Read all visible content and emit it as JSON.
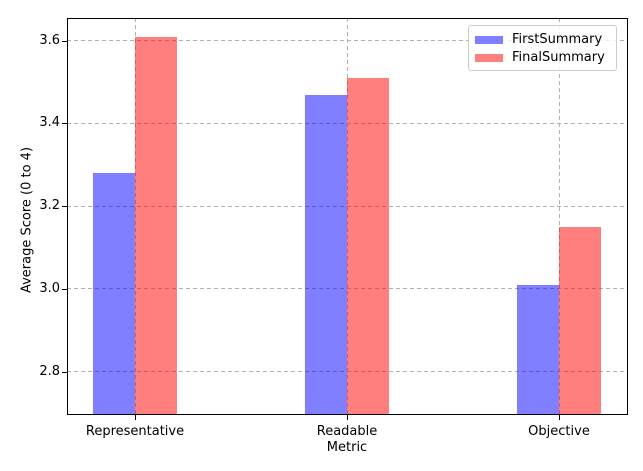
{
  "chart_data": {
    "type": "bar",
    "title": "",
    "xlabel": "Metric",
    "ylabel": "Average Score (0 to 4)",
    "categories": [
      "Representative",
      "Readable",
      "Objective"
    ],
    "series": [
      {
        "name": "FirstSummary",
        "color": "#8080ff",
        "fill": "rgba(0,0,255,0.5)",
        "values": [
          3.28,
          3.47,
          3.01
        ]
      },
      {
        "name": "FinalSummary",
        "color": "#ff8080",
        "fill": "rgba(255,0,0,0.5)",
        "values": [
          3.61,
          3.51,
          3.15
        ]
      }
    ],
    "ylim": [
      2.695,
      3.655
    ],
    "yticks": [
      2.8,
      3.0,
      3.2,
      3.4,
      3.6
    ],
    "ytick_labels": [
      "2.8",
      "3.0",
      "3.2",
      "3.4",
      "3.6"
    ],
    "grid": true,
    "grid_style": "dashed",
    "grid_color": "#b0b0b0",
    "legend_position": "upper right",
    "legend_labels": [
      "FirstSummary",
      "FinalSummary"
    ]
  }
}
